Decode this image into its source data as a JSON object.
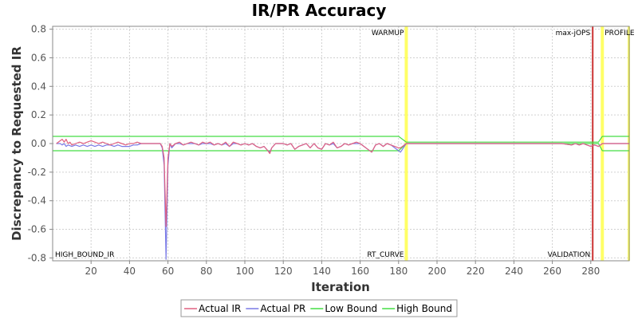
{
  "chart_data": {
    "type": "line",
    "title": "IR/PR Accuracy",
    "xlabel": "Iteration",
    "ylabel": "Discrepancy to Requested IR",
    "xlim": [
      0,
      300
    ],
    "ylim": [
      -0.82,
      0.82
    ],
    "x_ticks": [
      20,
      40,
      60,
      80,
      100,
      120,
      140,
      160,
      180,
      200,
      220,
      240,
      260,
      280
    ],
    "y_ticks": [
      0.8,
      0.6,
      0.4,
      0.2,
      0.0,
      -0.2,
      -0.4,
      -0.6,
      -0.8
    ],
    "x_tick_labels": [
      "20",
      "40",
      "60",
      "80",
      "100",
      "120",
      "140",
      "160",
      "180",
      "200",
      "220",
      "240",
      "260",
      "280"
    ],
    "y_tick_labels": [
      "0.8",
      "0.6",
      "0.4",
      "0.2",
      "0.0",
      "-0.2",
      "-0.4",
      "-0.6",
      "-0.8"
    ],
    "grid": true,
    "legend_position": "bottom-center",
    "markers": [
      {
        "x": 184,
        "color": "#ffff66",
        "label": "WARMUP",
        "label_side": "left",
        "label_pos": "top"
      },
      {
        "x": 184,
        "color": "#ffff66",
        "label": "RT_CURVE",
        "label_side": "left",
        "label_pos": "bottom"
      },
      {
        "x": 281,
        "color": "#cc3333",
        "label": "max-jOPS",
        "label_side": "left",
        "label_pos": "top"
      },
      {
        "x": 281,
        "color": "#cc3333",
        "label": "VALIDATION",
        "label_side": "left",
        "label_pos": "bottom"
      },
      {
        "x": 286,
        "color": "#ffff66",
        "label": "PROFILE",
        "label_side": "right",
        "label_pos": "top"
      },
      {
        "x": 0,
        "color": "none",
        "label": "HIGH_BOUND_IR",
        "label_side": "right",
        "label_pos": "bottom"
      }
    ],
    "end_marker": {
      "x": 300,
      "color": "#ffff66"
    },
    "series": [
      {
        "name": "Actual IR",
        "color": "#e06080",
        "points": [
          [
            2,
            0.0
          ],
          [
            4,
            0.02
          ],
          [
            5,
            0.03
          ],
          [
            6,
            0.01
          ],
          [
            7,
            0.03
          ],
          [
            8,
            0.0
          ],
          [
            9,
            0.01
          ],
          [
            10,
            -0.01
          ],
          [
            12,
            0.0
          ],
          [
            14,
            0.01
          ],
          [
            16,
            0.0
          ],
          [
            18,
            0.01
          ],
          [
            20,
            0.02
          ],
          [
            22,
            0.01
          ],
          [
            24,
            0.0
          ],
          [
            26,
            0.01
          ],
          [
            28,
            0.0
          ],
          [
            30,
            -0.01
          ],
          [
            32,
            0.0
          ],
          [
            34,
            0.01
          ],
          [
            36,
            0.0
          ],
          [
            38,
            -0.01
          ],
          [
            40,
            0.0
          ],
          [
            42,
            0.0
          ],
          [
            44,
            0.01
          ],
          [
            46,
            0.0
          ],
          [
            48,
            0.0
          ],
          [
            50,
            0.0
          ],
          [
            52,
            0.0
          ],
          [
            54,
            0.0
          ],
          [
            56,
            0.0
          ],
          [
            57,
            -0.02
          ],
          [
            58,
            -0.1
          ],
          [
            59,
            -0.58
          ],
          [
            60,
            -0.1
          ],
          [
            61,
            0.0
          ],
          [
            62,
            -0.02
          ],
          [
            64,
            0.0
          ],
          [
            66,
            0.01
          ],
          [
            68,
            -0.01
          ],
          [
            70,
            0.0
          ],
          [
            72,
            0.01
          ],
          [
            74,
            0.0
          ],
          [
            76,
            -0.01
          ],
          [
            78,
            0.01
          ],
          [
            80,
            0.0
          ],
          [
            82,
            0.01
          ],
          [
            84,
            -0.01
          ],
          [
            86,
            0.0
          ],
          [
            88,
            -0.01
          ],
          [
            90,
            0.01
          ],
          [
            92,
            -0.02
          ],
          [
            94,
            0.01
          ],
          [
            96,
            0.0
          ],
          [
            98,
            -0.01
          ],
          [
            100,
            0.0
          ],
          [
            102,
            -0.01
          ],
          [
            104,
            0.0
          ],
          [
            106,
            -0.02
          ],
          [
            108,
            -0.03
          ],
          [
            110,
            -0.02
          ],
          [
            112,
            -0.05
          ],
          [
            113,
            -0.07
          ],
          [
            114,
            -0.03
          ],
          [
            116,
            0.0
          ],
          [
            118,
            0.0
          ],
          [
            120,
            0.0
          ],
          [
            122,
            -0.01
          ],
          [
            124,
            0.0
          ],
          [
            126,
            -0.04
          ],
          [
            128,
            -0.02
          ],
          [
            130,
            -0.01
          ],
          [
            132,
            0.0
          ],
          [
            134,
            -0.03
          ],
          [
            136,
            0.0
          ],
          [
            138,
            -0.03
          ],
          [
            140,
            -0.04
          ],
          [
            142,
            0.0
          ],
          [
            144,
            -0.01
          ],
          [
            146,
            0.01
          ],
          [
            148,
            -0.03
          ],
          [
            150,
            -0.02
          ],
          [
            152,
            0.0
          ],
          [
            154,
            -0.01
          ],
          [
            156,
            0.0
          ],
          [
            158,
            0.01
          ],
          [
            160,
            0.0
          ],
          [
            162,
            -0.02
          ],
          [
            164,
            -0.04
          ],
          [
            166,
            -0.06
          ],
          [
            168,
            -0.01
          ],
          [
            170,
            0.0
          ],
          [
            172,
            -0.02
          ],
          [
            174,
            0.0
          ],
          [
            176,
            -0.01
          ],
          [
            178,
            -0.02
          ],
          [
            180,
            -0.03
          ],
          [
            181,
            -0.03
          ],
          [
            184,
            0.0
          ],
          [
            190,
            0.0
          ],
          [
            200,
            0.0
          ],
          [
            210,
            0.0
          ],
          [
            220,
            0.0
          ],
          [
            230,
            0.0
          ],
          [
            240,
            0.0
          ],
          [
            250,
            0.0
          ],
          [
            260,
            0.0
          ],
          [
            265,
            0.0
          ],
          [
            270,
            -0.01
          ],
          [
            272,
            0.0
          ],
          [
            274,
            -0.01
          ],
          [
            276,
            0.0
          ],
          [
            278,
            -0.01
          ],
          [
            280,
            -0.02
          ],
          [
            282,
            -0.01
          ],
          [
            284,
            -0.02
          ],
          [
            286,
            0.0
          ],
          [
            290,
            0.0
          ],
          [
            295,
            0.0
          ],
          [
            300,
            0.0
          ]
        ]
      },
      {
        "name": "Actual PR",
        "color": "#7a7ae6",
        "points": [
          [
            2,
            0.0
          ],
          [
            4,
            0.0
          ],
          [
            5,
            -0.01
          ],
          [
            6,
            0.0
          ],
          [
            7,
            -0.02
          ],
          [
            8,
            -0.01
          ],
          [
            10,
            -0.02
          ],
          [
            12,
            -0.01
          ],
          [
            14,
            -0.02
          ],
          [
            16,
            -0.01
          ],
          [
            18,
            -0.02
          ],
          [
            20,
            -0.01
          ],
          [
            22,
            -0.02
          ],
          [
            24,
            -0.01
          ],
          [
            26,
            -0.02
          ],
          [
            28,
            -0.01
          ],
          [
            30,
            -0.01
          ],
          [
            32,
            -0.02
          ],
          [
            34,
            -0.01
          ],
          [
            36,
            -0.02
          ],
          [
            38,
            -0.02
          ],
          [
            40,
            -0.02
          ],
          [
            42,
            -0.01
          ],
          [
            44,
            -0.01
          ],
          [
            46,
            0.0
          ],
          [
            48,
            0.0
          ],
          [
            50,
            0.0
          ],
          [
            52,
            0.0
          ],
          [
            54,
            0.0
          ],
          [
            56,
            0.0
          ],
          [
            57,
            -0.03
          ],
          [
            58,
            -0.15
          ],
          [
            59,
            -0.81
          ],
          [
            60,
            -0.15
          ],
          [
            61,
            0.0
          ],
          [
            62,
            -0.03
          ],
          [
            64,
            0.0
          ],
          [
            66,
            0.0
          ],
          [
            68,
            -0.01
          ],
          [
            70,
            0.0
          ],
          [
            72,
            0.0
          ],
          [
            74,
            0.0
          ],
          [
            76,
            -0.01
          ],
          [
            78,
            0.0
          ],
          [
            80,
            0.0
          ],
          [
            82,
            0.0
          ],
          [
            84,
            -0.01
          ],
          [
            86,
            0.0
          ],
          [
            88,
            -0.01
          ],
          [
            90,
            0.0
          ],
          [
            92,
            -0.02
          ],
          [
            94,
            0.0
          ],
          [
            96,
            0.0
          ],
          [
            98,
            -0.01
          ],
          [
            100,
            0.0
          ],
          [
            102,
            -0.01
          ],
          [
            104,
            0.0
          ],
          [
            106,
            -0.02
          ],
          [
            108,
            -0.03
          ],
          [
            110,
            -0.02
          ],
          [
            112,
            -0.05
          ],
          [
            113,
            -0.06
          ],
          [
            114,
            -0.03
          ],
          [
            116,
            0.0
          ],
          [
            118,
            0.0
          ],
          [
            120,
            0.0
          ],
          [
            122,
            -0.01
          ],
          [
            124,
            0.0
          ],
          [
            126,
            -0.04
          ],
          [
            128,
            -0.02
          ],
          [
            130,
            -0.01
          ],
          [
            132,
            0.0
          ],
          [
            134,
            -0.03
          ],
          [
            136,
            0.0
          ],
          [
            138,
            -0.03
          ],
          [
            140,
            -0.04
          ],
          [
            142,
            0.0
          ],
          [
            144,
            -0.01
          ],
          [
            146,
            0.0
          ],
          [
            148,
            -0.03
          ],
          [
            150,
            -0.02
          ],
          [
            152,
            0.0
          ],
          [
            154,
            -0.01
          ],
          [
            156,
            0.0
          ],
          [
            158,
            0.0
          ],
          [
            160,
            0.0
          ],
          [
            162,
            -0.02
          ],
          [
            164,
            -0.04
          ],
          [
            166,
            -0.06
          ],
          [
            168,
            -0.01
          ],
          [
            170,
            0.0
          ],
          [
            172,
            -0.02
          ],
          [
            174,
            0.0
          ],
          [
            176,
            -0.01
          ],
          [
            178,
            -0.03
          ],
          [
            180,
            -0.05
          ],
          [
            181,
            -0.06
          ],
          [
            184,
            0.0
          ],
          [
            190,
            0.0
          ],
          [
            200,
            0.0
          ],
          [
            210,
            0.0
          ],
          [
            220,
            0.0
          ],
          [
            230,
            0.0
          ],
          [
            240,
            0.0
          ],
          [
            250,
            0.0
          ],
          [
            260,
            0.0
          ],
          [
            265,
            0.0
          ],
          [
            270,
            -0.01
          ],
          [
            272,
            0.0
          ],
          [
            274,
            -0.01
          ],
          [
            276,
            0.0
          ],
          [
            278,
            -0.01
          ],
          [
            280,
            -0.02
          ],
          [
            282,
            -0.01
          ],
          [
            284,
            -0.02
          ],
          [
            286,
            0.0
          ],
          [
            290,
            0.0
          ],
          [
            295,
            0.0
          ],
          [
            300,
            0.0
          ]
        ]
      },
      {
        "name": "Low Bound",
        "color": "#44dd44",
        "points": [
          [
            0,
            -0.05
          ],
          [
            180,
            -0.05
          ],
          [
            184,
            0.0
          ],
          [
            284,
            0.0
          ],
          [
            286,
            -0.05
          ],
          [
            300,
            -0.05
          ]
        ]
      },
      {
        "name": "High Bound",
        "color": "#44dd44",
        "points": [
          [
            0,
            0.05
          ],
          [
            180,
            0.05
          ],
          [
            184,
            0.01
          ],
          [
            284,
            0.01
          ],
          [
            286,
            0.05
          ],
          [
            300,
            0.05
          ]
        ]
      }
    ]
  }
}
